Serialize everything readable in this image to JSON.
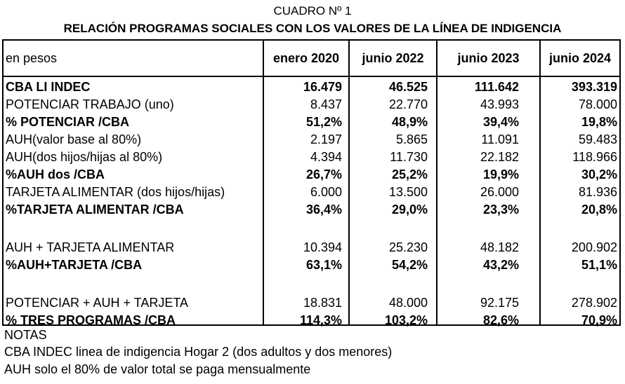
{
  "caption": "CUADRO Nº 1",
  "title": "RELACIÓN PROGRAMAS SOCIALES CON LOS VALORES DE LA LÍNEA DE INDIGENCIA",
  "table": {
    "unit_label": "en pesos",
    "columns": [
      "enero 2020",
      "junio 2022",
      "junio 2023",
      "junio 2024"
    ],
    "rows": [
      {
        "label": "CBA LI INDEC",
        "bold": true,
        "values": [
          "16.479",
          "46.525",
          "111.642",
          "393.319"
        ]
      },
      {
        "label": "POTENCIAR TRABAJO (uno)",
        "bold": false,
        "values": [
          "8.437",
          "22.770",
          "43.993",
          "78.000"
        ]
      },
      {
        "label": "% POTENCIAR /CBA",
        "bold": true,
        "values": [
          "51,2%",
          "48,9%",
          "39,4%",
          "19,8%"
        ]
      },
      {
        "label": "AUH(valor base al 80%)",
        "bold": false,
        "values": [
          "2.197",
          "5.865",
          "11.091",
          "59.483"
        ]
      },
      {
        "label": "AUH(dos hijos/hijas al 80%)",
        "bold": false,
        "values": [
          "4.394",
          "11.730",
          "22.182",
          "118.966"
        ]
      },
      {
        "label": "%AUH dos /CBA",
        "bold": true,
        "values": [
          "26,7%",
          "25,2%",
          "19,9%",
          "30,2%"
        ]
      },
      {
        "label": "TARJETA ALIMENTAR (dos hijos/hijas)",
        "bold": false,
        "values": [
          "6.000",
          "13.500",
          "26.000",
          "81.936"
        ]
      },
      {
        "label": "%TARJETA ALIMENTAR /CBA",
        "bold": true,
        "values": [
          "36,4%",
          "29,0%",
          "23,3%",
          "20,8%"
        ]
      },
      {
        "label": "AUH + TARJETA ALIMENTAR",
        "bold": false,
        "values": [
          "10.394",
          "25.230",
          "48.182",
          "200.902"
        ]
      },
      {
        "label": "%AUH+TARJETA /CBA",
        "bold": true,
        "values": [
          "63,1%",
          "54,2%",
          "43,2%",
          "51,1%"
        ]
      },
      {
        "label": "POTENCIAR + AUH + TARJETA",
        "bold": false,
        "values": [
          "18.831",
          "48.000",
          "92.175",
          "278.902"
        ]
      },
      {
        "label": "% TRES PROGRAMAS /CBA",
        "bold": true,
        "values": [
          "114,3%",
          "103,2%",
          "82,6%",
          "70,9%"
        ]
      }
    ]
  },
  "notes": [
    "NOTAS",
    "CBA INDEC linea de indigencia Hogar 2 (dos adultos y dos menores)",
    "AUH solo el 80% de valor total se paga mensualmente"
  ]
}
